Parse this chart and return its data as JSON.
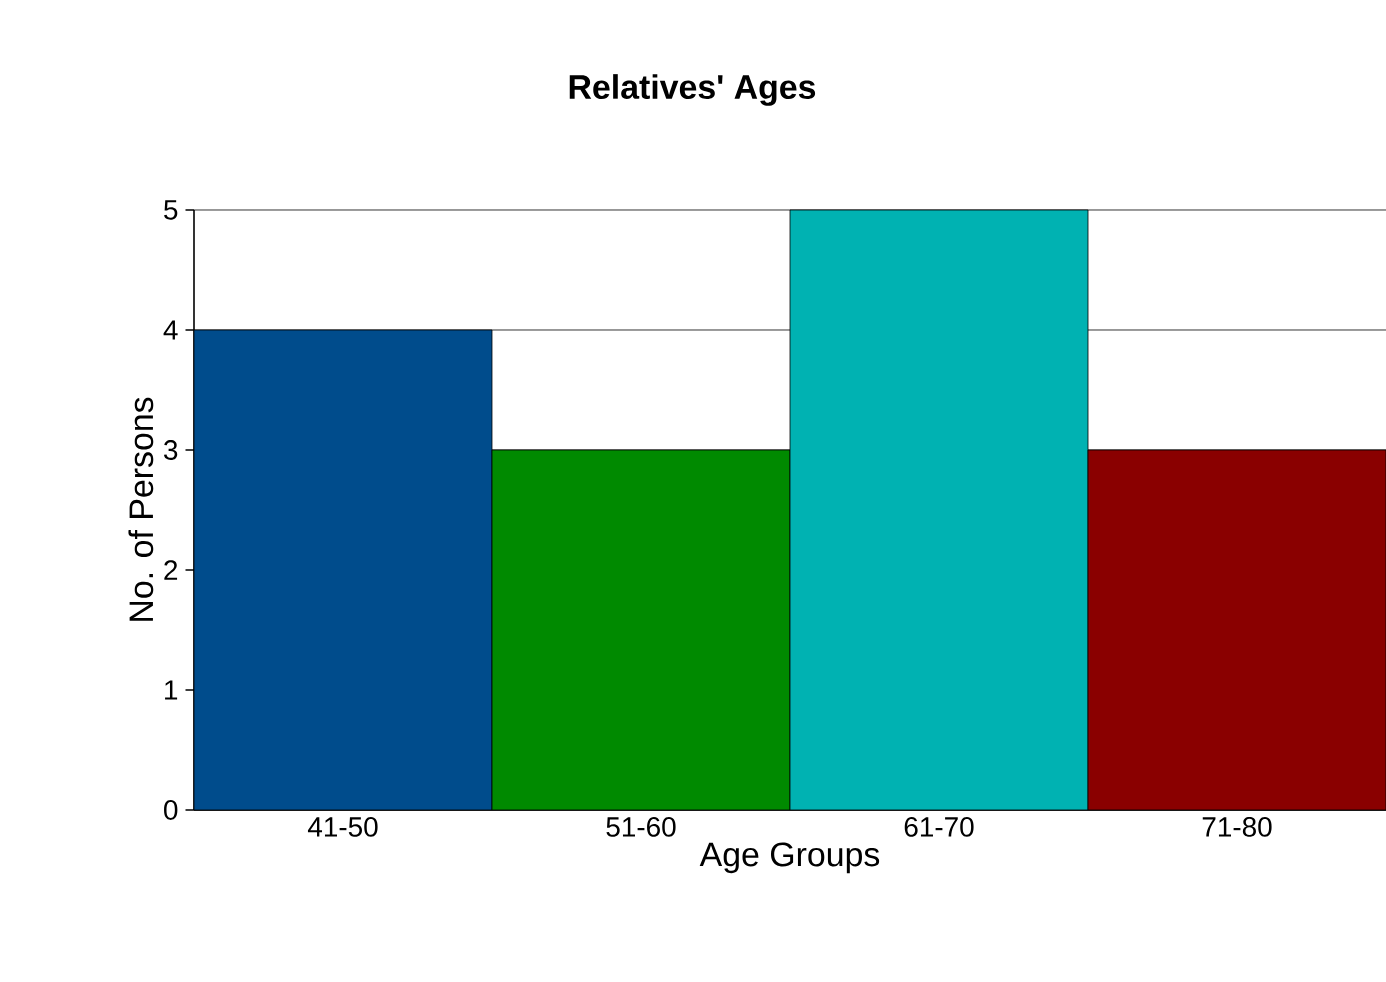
{
  "chart_data": {
    "type": "bar",
    "title": "Relatives' Ages",
    "xlabel": "Age Groups",
    "ylabel": "No. of Persons",
    "categories": [
      "41-50",
      "51-60",
      "61-70",
      "71-80"
    ],
    "values": [
      4,
      3,
      5,
      3
    ],
    "colors": [
      "#004c8c",
      "#008a00",
      "#00b2b2",
      "#8a0000"
    ],
    "ylim": [
      0,
      5
    ],
    "yticks": [
      0,
      1,
      2,
      3,
      4,
      5
    ],
    "grid": "y"
  }
}
